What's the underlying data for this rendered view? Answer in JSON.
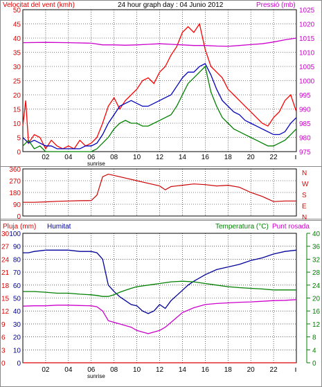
{
  "chart_data": [
    {
      "type": "line",
      "title": "24 hour graph day : 04 Junio 2012",
      "ylabel_left": "Velocitat del vent (kmh)",
      "ylabel_right": "Pressió (mb)",
      "ylim_left": [
        0,
        50
      ],
      "ylim_right": [
        975,
        1025
      ],
      "yticks_left": [
        "0",
        "5",
        "10",
        "15",
        "20",
        "25",
        "30",
        "35",
        "40",
        "45",
        "50"
      ],
      "yticks_right": [
        "975",
        "980",
        "985",
        "990",
        "995",
        "1000",
        "1005",
        "1010",
        "1015",
        "1020",
        "1025"
      ],
      "xlim": [
        0,
        24
      ],
      "xticks": [
        "02",
        "04",
        "06",
        "08",
        "10",
        "12",
        "14",
        "16",
        "18",
        "20",
        "22"
      ],
      "sunrise_label": "sunrise",
      "sunrise_hour": 7.0,
      "series": [
        {
          "axis": "left",
          "color": "#ff0000",
          "x": [
            0,
            0.25,
            0.5,
            1,
            1.5,
            2,
            2.5,
            3,
            3.5,
            4,
            4.5,
            5,
            5.5,
            6,
            6.5,
            7,
            7.5,
            8,
            8.5,
            9,
            9.5,
            10,
            10.5,
            11,
            11.5,
            12,
            12.5,
            13,
            13.5,
            14,
            14.5,
            15,
            15.5,
            16,
            16.5,
            17,
            17.5,
            18,
            18.5,
            19,
            19.5,
            20,
            20.5,
            21,
            21.5,
            22,
            22.5,
            23,
            23.5,
            24
          ],
          "values": [
            9,
            18,
            3,
            6,
            5,
            1,
            4,
            2,
            1,
            2,
            1,
            4,
            2,
            3,
            5,
            10,
            16,
            19,
            15,
            18,
            20,
            22,
            25,
            26,
            24,
            28,
            30,
            34,
            37,
            42,
            44,
            42,
            45,
            36,
            30,
            28,
            26,
            22,
            20,
            18,
            16,
            14,
            12,
            10,
            9,
            12,
            14,
            18,
            20,
            14
          ]
        },
        {
          "axis": "left",
          "color": "#0000bb",
          "x": [
            0,
            0.5,
            1,
            1.5,
            2,
            2.5,
            3,
            3.5,
            4,
            4.5,
            5,
            5.5,
            6,
            6.5,
            7,
            7.5,
            8,
            8.5,
            9,
            9.5,
            10,
            10.5,
            11,
            11.5,
            12,
            12.5,
            13,
            13.5,
            14,
            14.5,
            15,
            15.5,
            16,
            16.5,
            17,
            17.5,
            18,
            18.5,
            19,
            19.5,
            20,
            20.5,
            21,
            21.5,
            22,
            22.5,
            23,
            23.5,
            24
          ],
          "values": [
            5,
            3,
            4,
            3,
            2,
            2,
            1,
            1,
            1,
            1,
            1,
            2,
            2,
            3,
            6,
            10,
            13,
            16,
            17,
            18,
            17,
            16,
            16,
            17,
            18,
            19,
            20,
            23,
            26,
            28,
            28,
            30,
            31,
            27,
            22,
            18,
            16,
            14,
            13,
            11,
            10,
            9,
            8,
            7,
            6,
            6,
            7,
            10,
            12
          ]
        },
        {
          "axis": "left",
          "color": "#008000",
          "x": [
            0,
            0.5,
            1,
            1.5,
            2,
            2.5,
            3,
            3.5,
            4,
            4.5,
            5,
            5.5,
            6,
            6.5,
            7,
            7.5,
            8,
            8.5,
            9,
            9.5,
            10,
            10.5,
            11,
            11.5,
            12,
            12.5,
            13,
            13.5,
            14,
            14.5,
            15,
            15.5,
            16,
            16.5,
            17,
            17.5,
            18,
            18.5,
            19,
            19.5,
            20,
            20.5,
            21,
            21.5,
            22,
            22.5,
            23,
            23.5,
            24
          ],
          "values": [
            2,
            4,
            1,
            2,
            0,
            0,
            0,
            0,
            0,
            0,
            0,
            0,
            0,
            1,
            3,
            5,
            8,
            10,
            11,
            10,
            10,
            9,
            9,
            10,
            11,
            12,
            13,
            16,
            20,
            24,
            26,
            28,
            30,
            21,
            16,
            12,
            10,
            8,
            7,
            6,
            5,
            4,
            3,
            2,
            2,
            3,
            4,
            6,
            8
          ]
        },
        {
          "axis": "right",
          "color": "#cc00cc",
          "x": [
            0,
            2,
            4,
            6,
            7,
            8,
            9,
            10,
            11,
            12,
            13,
            14,
            15,
            16,
            17,
            18,
            19,
            20,
            21,
            22,
            23,
            24
          ],
          "values": [
            1013.4,
            1013.5,
            1013.4,
            1013.2,
            1012.6,
            1012.6,
            1012.5,
            1012.6,
            1012.8,
            1013,
            1012.8,
            1012.6,
            1012.4,
            1012.4,
            1012.2,
            1012.1,
            1012.4,
            1012.7,
            1013,
            1013.6,
            1014.4,
            1015
          ]
        }
      ]
    },
    {
      "type": "line",
      "ylabel_right": "N W S E N",
      "direction_letters": [
        "N",
        "W",
        "S",
        "E",
        "N"
      ],
      "ylim": [
        0,
        360
      ],
      "yticks": [
        "0",
        "90",
        "180",
        "270",
        "360"
      ],
      "xlim": [
        0,
        24
      ],
      "series": [
        {
          "color": "#cc0000",
          "x": [
            0,
            1,
            2,
            3,
            4,
            5,
            6,
            6.5,
            7,
            7.5,
            8,
            9,
            10,
            11,
            12,
            12.5,
            13,
            14,
            15,
            16,
            17,
            18,
            19,
            20,
            21,
            22,
            23,
            24
          ],
          "values": [
            105,
            105,
            108,
            112,
            115,
            117,
            118,
            160,
            300,
            320,
            310,
            290,
            270,
            250,
            230,
            200,
            225,
            235,
            245,
            240,
            230,
            235,
            220,
            180,
            150,
            110,
            115,
            115
          ]
        }
      ]
    },
    {
      "type": "line",
      "legend": [
        "Pluja (mm)",
        "Humitat",
        "Temperatura (°C)",
        "Punt rosada"
      ],
      "ylim_pluja": [
        0,
        30
      ],
      "yticks_pluja": [
        "0",
        "3",
        "6",
        "9",
        "12",
        "15",
        "18",
        "21",
        "24",
        "27",
        "30"
      ],
      "ylim_humitat": [
        0,
        100
      ],
      "yticks_humitat": [
        "0",
        "10",
        "20",
        "30",
        "40",
        "50",
        "60",
        "70",
        "80",
        "90",
        "100"
      ],
      "ylim_temp": [
        0,
        40
      ],
      "yticks_temp": [
        "0",
        "4",
        "8",
        "12",
        "16",
        "20",
        "24",
        "28",
        "32",
        "36",
        "40"
      ],
      "xlim": [
        0,
        24
      ],
      "xticks": [
        "02",
        "04",
        "06",
        "08",
        "10",
        "12",
        "14",
        "16",
        "18",
        "20",
        "22"
      ],
      "sunrise_label": "sunrise",
      "sunrise_hour": 7.0,
      "series": [
        {
          "name": "Humitat",
          "axis": "humitat",
          "color": "#000099",
          "x": [
            0,
            0.5,
            1,
            2,
            3,
            4,
            5,
            6,
            6.5,
            7,
            7.5,
            8,
            8.5,
            9,
            9.5,
            10,
            10.5,
            11,
            11.5,
            12,
            12.5,
            13,
            13.5,
            14,
            14.5,
            15,
            16,
            17,
            18,
            19,
            20,
            21,
            22,
            23,
            24
          ],
          "values": [
            85,
            85,
            86,
            87,
            87,
            87,
            86,
            86,
            85,
            80,
            60,
            55,
            51,
            48,
            45,
            44,
            40,
            38,
            40,
            45,
            42,
            48,
            52,
            56,
            60,
            63,
            68,
            72,
            74,
            76,
            79,
            81,
            84,
            86,
            87
          ]
        },
        {
          "name": "Temperatura (°C)",
          "axis": "temp",
          "color": "#008000",
          "x": [
            0,
            1,
            2,
            3,
            4,
            5,
            6,
            6.5,
            7,
            7.5,
            8,
            8.5,
            9,
            9.5,
            10,
            11,
            12,
            13,
            14,
            15,
            16,
            17,
            18,
            19,
            20,
            21,
            22,
            23,
            24
          ],
          "values": [
            22,
            22,
            21.8,
            21.5,
            21.5,
            21.2,
            21,
            20.8,
            20.5,
            20.5,
            21,
            21.8,
            22.4,
            23,
            23.5,
            24,
            24.5,
            25,
            25.2,
            25,
            24.5,
            24,
            23.5,
            23.2,
            23,
            22.8,
            22.5,
            22.5,
            22.5
          ]
        },
        {
          "name": "Punt rosada",
          "axis": "temp",
          "color": "#cc00cc",
          "x": [
            0,
            1,
            2,
            3,
            4,
            5,
            6,
            6.5,
            7,
            7.5,
            8,
            8.5,
            9,
            9.5,
            10,
            10.5,
            11,
            11.5,
            12,
            12.5,
            13,
            14,
            15,
            16,
            17,
            18,
            19,
            20,
            21,
            22,
            23,
            24
          ],
          "values": [
            17.5,
            17.6,
            17.6,
            17.8,
            17.8,
            17.7,
            17.6,
            17.3,
            16,
            13,
            12.5,
            12,
            11.5,
            11,
            10,
            9.5,
            9,
            9.5,
            10,
            11,
            12.5,
            15.5,
            17,
            18,
            18.3,
            18.5,
            18.7,
            18.8,
            19,
            19.2,
            19.3,
            19.5
          ]
        },
        {
          "name": "Pluja (mm)",
          "axis": "pluja",
          "color": "#dd0000",
          "x": [
            0,
            24
          ],
          "values": [
            0,
            0
          ]
        }
      ]
    }
  ]
}
